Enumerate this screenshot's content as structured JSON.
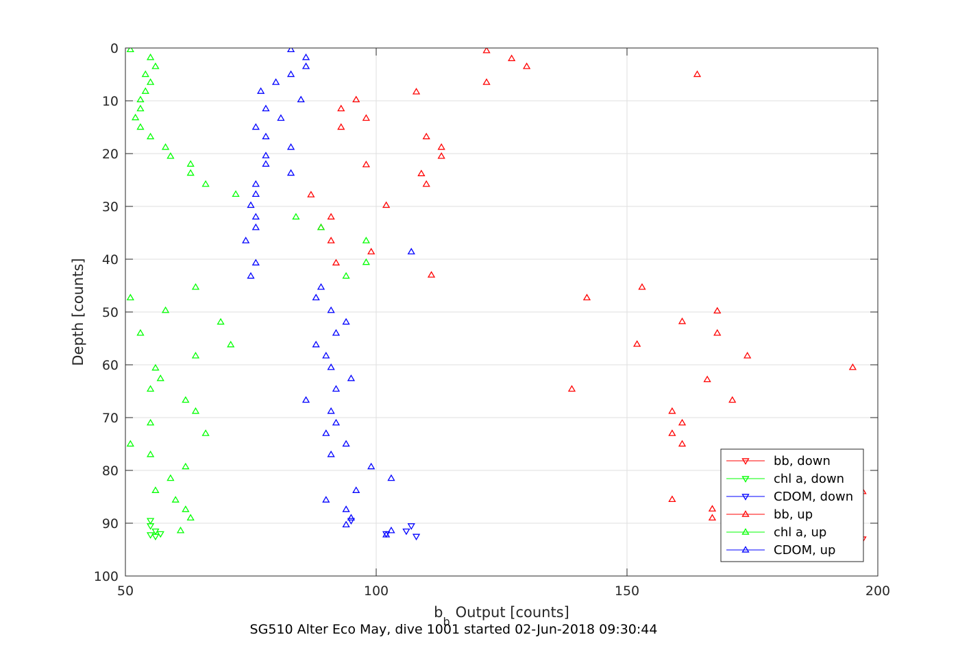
{
  "chart_data": {
    "type": "scatter",
    "title": "SG510 Alter Eco May, dive 1001 started 02-Jun-2018 09:30:44",
    "xlabel": "Output [counts]",
    "xlabel_prefix": "b",
    "xlabel_subscript": "b",
    "ylabel": "Depth [counts]",
    "xlim": [
      50,
      200
    ],
    "ylim": [
      0,
      100
    ],
    "y_reversed": true,
    "grid": true,
    "legend_position": "bottom-right",
    "xticks": [
      50,
      100,
      150,
      200
    ],
    "yticks": [
      0,
      10,
      20,
      30,
      40,
      50,
      60,
      70,
      80,
      90,
      100
    ],
    "series": [
      {
        "name": "bb, down",
        "color": "#ff0000",
        "marker": "triangle-down",
        "points": [
          [
            196,
            92
          ],
          [
            197,
            93
          ]
        ]
      },
      {
        "name": "chl a, down",
        "color": "#00ff00",
        "marker": "triangle-down",
        "points": [
          [
            55,
            89.5
          ],
          [
            55,
            90.5
          ],
          [
            56,
            91.5
          ],
          [
            57,
            92
          ],
          [
            56,
            92.5
          ],
          [
            55,
            92.2
          ]
        ]
      },
      {
        "name": "CDOM, down",
        "color": "#0000ff",
        "marker": "triangle-down",
        "points": [
          [
            95,
            89.5
          ],
          [
            107,
            90.5
          ],
          [
            106,
            91.5
          ],
          [
            102,
            92
          ],
          [
            108,
            92.5
          ]
        ]
      },
      {
        "name": "bb, up",
        "color": "#ff0000",
        "marker": "triangle-up",
        "points": [
          [
            122,
            0.5
          ],
          [
            127,
            2
          ],
          [
            130,
            3.5
          ],
          [
            164,
            5
          ],
          [
            122,
            6.5
          ],
          [
            108,
            8.3
          ],
          [
            96,
            9.8
          ],
          [
            93,
            11.5
          ],
          [
            98,
            13.3
          ],
          [
            93,
            15
          ],
          [
            110,
            16.8
          ],
          [
            113,
            18.8
          ],
          [
            113,
            20.5
          ],
          [
            98,
            22.1
          ],
          [
            109,
            23.8
          ],
          [
            110,
            25.8
          ],
          [
            87,
            27.8
          ],
          [
            102,
            29.8
          ],
          [
            91,
            32
          ],
          [
            89,
            34
          ],
          [
            91,
            36.5
          ],
          [
            99,
            38.6
          ],
          [
            92,
            40.7
          ],
          [
            111,
            43
          ],
          [
            153,
            45.3
          ],
          [
            142,
            47.3
          ],
          [
            168,
            49.8
          ],
          [
            161,
            51.8
          ],
          [
            168,
            54
          ],
          [
            152,
            56.1
          ],
          [
            174,
            58.3
          ],
          [
            195,
            60.5
          ],
          [
            166,
            62.8
          ],
          [
            139,
            64.6
          ],
          [
            171,
            66.7
          ],
          [
            159,
            68.8
          ],
          [
            161,
            71
          ],
          [
            159,
            73
          ],
          [
            161,
            75
          ],
          [
            197,
            84
          ],
          [
            159,
            85.5
          ],
          [
            167,
            87.3
          ],
          [
            167,
            89
          ]
        ]
      },
      {
        "name": "chl a, up",
        "color": "#00ff00",
        "marker": "triangle-up",
        "points": [
          [
            51,
            0.3
          ],
          [
            55,
            1.8
          ],
          [
            56,
            3.5
          ],
          [
            54,
            5
          ],
          [
            55,
            6.5
          ],
          [
            54,
            8.2
          ],
          [
            53,
            9.8
          ],
          [
            53,
            11.5
          ],
          [
            52,
            13.2
          ],
          [
            53,
            15
          ],
          [
            55,
            16.8
          ],
          [
            58,
            18.8
          ],
          [
            59,
            20.5
          ],
          [
            63,
            22
          ],
          [
            63,
            23.7
          ],
          [
            66,
            25.8
          ],
          [
            72,
            27.7
          ],
          [
            84,
            32
          ],
          [
            89,
            34
          ],
          [
            98,
            36.5
          ],
          [
            98,
            40.6
          ],
          [
            94,
            43.2
          ],
          [
            64,
            45.3
          ],
          [
            51,
            47.3
          ],
          [
            58,
            49.7
          ],
          [
            69,
            51.9
          ],
          [
            53,
            54
          ],
          [
            71,
            56.2
          ],
          [
            64,
            58.3
          ],
          [
            56,
            60.6
          ],
          [
            57,
            62.6
          ],
          [
            55,
            64.6
          ],
          [
            62,
            66.7
          ],
          [
            64,
            68.8
          ],
          [
            55,
            71
          ],
          [
            66,
            73
          ],
          [
            51,
            75
          ],
          [
            55,
            77
          ],
          [
            62,
            79.3
          ],
          [
            59,
            81.5
          ],
          [
            56,
            83.8
          ],
          [
            60,
            85.6
          ],
          [
            62,
            87.4
          ],
          [
            63,
            89
          ],
          [
            61,
            91.4
          ]
        ]
      },
      {
        "name": "CDOM, up",
        "color": "#0000ff",
        "marker": "triangle-up",
        "points": [
          [
            83,
            0.3
          ],
          [
            86,
            1.8
          ],
          [
            86,
            3.5
          ],
          [
            83,
            5
          ],
          [
            80,
            6.5
          ],
          [
            77,
            8.2
          ],
          [
            85,
            9.8
          ],
          [
            78,
            11.5
          ],
          [
            81,
            13.3
          ],
          [
            76,
            15
          ],
          [
            78,
            16.8
          ],
          [
            83,
            18.8
          ],
          [
            78,
            20.4
          ],
          [
            78,
            22
          ],
          [
            83,
            23.7
          ],
          [
            76,
            25.8
          ],
          [
            76,
            27.7
          ],
          [
            75,
            29.8
          ],
          [
            76,
            32
          ],
          [
            76,
            34
          ],
          [
            74,
            36.5
          ],
          [
            107,
            38.6
          ],
          [
            76,
            40.7
          ],
          [
            75,
            43.2
          ],
          [
            89,
            45.3
          ],
          [
            88,
            47.3
          ],
          [
            91,
            49.7
          ],
          [
            94,
            51.9
          ],
          [
            92,
            54
          ],
          [
            88,
            56.2
          ],
          [
            90,
            58.3
          ],
          [
            91,
            60.5
          ],
          [
            95,
            62.6
          ],
          [
            92,
            64.6
          ],
          [
            86,
            66.7
          ],
          [
            91,
            68.8
          ],
          [
            92,
            71
          ],
          [
            90,
            73
          ],
          [
            94,
            75
          ],
          [
            91,
            77
          ],
          [
            99,
            79.3
          ],
          [
            103,
            81.5
          ],
          [
            96,
            83.8
          ],
          [
            90,
            85.6
          ],
          [
            94,
            87.4
          ],
          [
            95,
            89
          ],
          [
            94,
            90.3
          ],
          [
            103,
            91.4
          ],
          [
            102,
            92.2
          ]
        ]
      }
    ]
  }
}
